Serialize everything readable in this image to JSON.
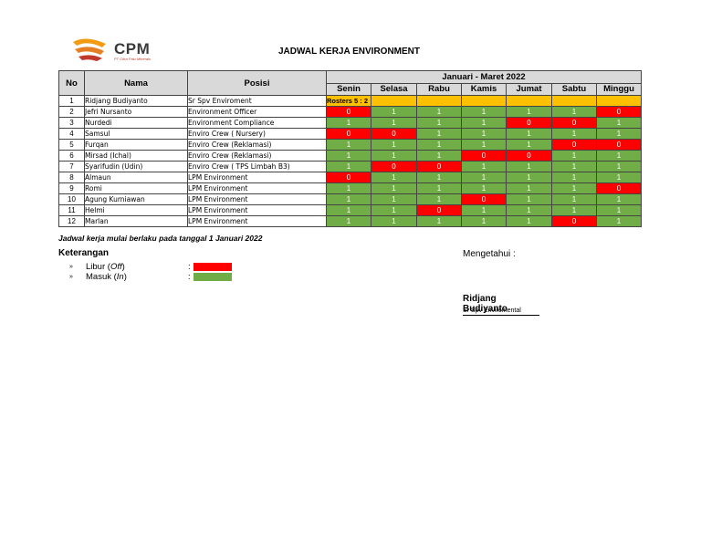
{
  "header": {
    "logo_text": "CPM",
    "logo_subtitle": "PT Citra Palu Minerals",
    "title": "JADWAL KERJA ENVIRONMENT"
  },
  "table": {
    "col_no": "No",
    "col_nama": "Nama",
    "col_posisi": "Posisi",
    "period": "Januari - Maret 2022",
    "days": [
      "Senin",
      "Selasa",
      "Rabu",
      "Kamis",
      "Jumat",
      "Sabtu",
      "Minggu"
    ],
    "roster_label": "Rosters 5 : 2",
    "rows": [
      {
        "no": "1",
        "nama": "Ridjang Budiyanto",
        "posisi": "Sr Spv Enviroment",
        "roster": true
      },
      {
        "no": "2",
        "nama": "Jefri Nursanto",
        "posisi": "Environment Officer",
        "values": [
          "0",
          "1",
          "1",
          "1",
          "1",
          "1",
          "0"
        ]
      },
      {
        "no": "3",
        "nama": "Nurdedi",
        "posisi": "Environment Compliance",
        "values": [
          "1",
          "1",
          "1",
          "1",
          "0",
          "0",
          "1"
        ]
      },
      {
        "no": "4",
        "nama": "Samsul",
        "posisi": "Enviro Crew ( Nursery)",
        "values": [
          "0",
          "0",
          "1",
          "1",
          "1",
          "1",
          "1"
        ]
      },
      {
        "no": "5",
        "nama": "Furqan",
        "posisi": "Enviro Crew (Reklamasi)",
        "values": [
          "1",
          "1",
          "1",
          "1",
          "1",
          "0",
          "0"
        ]
      },
      {
        "no": "6",
        "nama": "Mirsad (Ichal)",
        "posisi": "Enviro Crew (Reklamasi)",
        "values": [
          "1",
          "1",
          "1",
          "0",
          "0",
          "1",
          "1"
        ]
      },
      {
        "no": "7",
        "nama": "Syarifudin (Udin)",
        "posisi": "Enviro Crew ( TPS Limbah B3)",
        "values": [
          "1",
          "0",
          "0",
          "1",
          "1",
          "1",
          "1"
        ]
      },
      {
        "no": "8",
        "nama": "Almaun",
        "posisi": "LPM Environment",
        "values": [
          "0",
          "1",
          "1",
          "1",
          "1",
          "1",
          "1"
        ]
      },
      {
        "no": "9",
        "nama": "Romi",
        "posisi": "LPM Environment",
        "values": [
          "1",
          "1",
          "1",
          "1",
          "1",
          "1",
          "0"
        ]
      },
      {
        "no": "10",
        "nama": "Agung Kurniawan",
        "posisi": "LPM Environment",
        "values": [
          "1",
          "1",
          "1",
          "0",
          "1",
          "1",
          "1"
        ]
      },
      {
        "no": "11",
        "nama": "Helmi",
        "posisi": "LPM Environment",
        "values": [
          "1",
          "1",
          "0",
          "1",
          "1",
          "1",
          "1"
        ]
      },
      {
        "no": "12",
        "nama": "Marlan",
        "posisi": "LPM Environment",
        "values": [
          "1",
          "1",
          "1",
          "1",
          "1",
          "0",
          "1"
        ]
      }
    ]
  },
  "note": "Jadwal kerja mulai berlaku pada tanggal 1 Januari 2022",
  "legend": {
    "title": "Keterangan",
    "bullet": "»",
    "items": [
      {
        "label_pre": "Libur ( ",
        "label_em": "Off",
        "label_post": " )",
        "color": "#ff0000"
      },
      {
        "label_pre": "Masuk ( ",
        "label_em": "In",
        "label_post": " )",
        "color": "#70ad47"
      }
    ],
    "colon": ":"
  },
  "approval": {
    "label": "Mengetahui :",
    "name": "Ridjang Budiyanto",
    "position": "Sr Spv Enviromental"
  },
  "colors": {
    "on": "#70ad47",
    "off": "#ff0000",
    "roster": "#ffc000",
    "header": "#d9d9d9"
  }
}
